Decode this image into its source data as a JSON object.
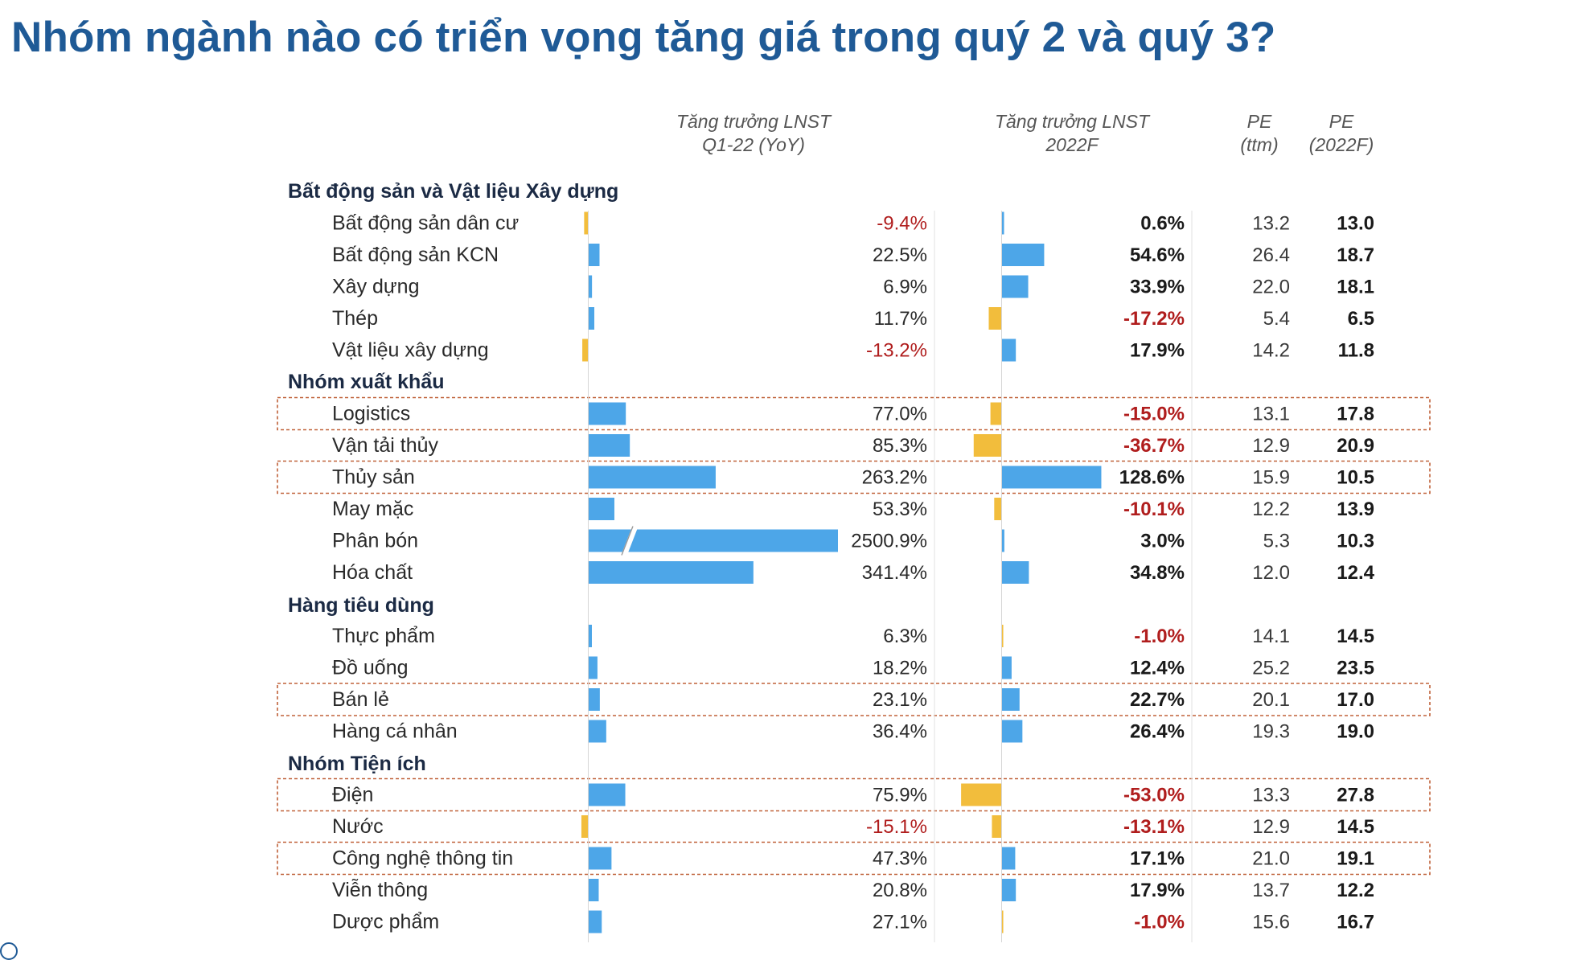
{
  "title": "Nhóm ngành nào có triển vọng tăng giá trong quý 2 và quý 3?",
  "colors": {
    "positive_bar": "#4da6e8",
    "negative_bar": "#f2bd3c",
    "negative_text": "#b01d1d",
    "title": "#1f5a96",
    "highlight_border": "#c0623a"
  },
  "chart_data": {
    "type": "table",
    "columns": [
      {
        "key": "q1",
        "label": [
          "Tăng trưởng LNST",
          "Q1-22 (YoY)"
        ]
      },
      {
        "key": "fy",
        "label": [
          "Tăng trưởng LNST",
          "2022F"
        ]
      },
      {
        "key": "pe_ttm",
        "label": [
          "PE",
          "(ttm)"
        ]
      },
      {
        "key": "pe_f",
        "label": [
          "PE",
          "(2022F)"
        ]
      }
    ],
    "groups": [
      {
        "name": "Bất động sản và Vật liệu Xây dựng",
        "rows": [
          {
            "name": "Bất động sản dân cư",
            "q1": -9.4,
            "q1_text": "-9.4%",
            "fy": 0.6,
            "fy_text": "0.6%",
            "pe_ttm": "13.2",
            "pe_f": "13.0",
            "highlight": false
          },
          {
            "name": "Bất động sản KCN",
            "q1": 22.5,
            "q1_text": "22.5%",
            "fy": 54.6,
            "fy_text": "54.6%",
            "pe_ttm": "26.4",
            "pe_f": "18.7",
            "highlight": false
          },
          {
            "name": "Xây dựng",
            "q1": 6.9,
            "q1_text": "6.9%",
            "fy": 33.9,
            "fy_text": "33.9%",
            "pe_ttm": "22.0",
            "pe_f": "18.1",
            "highlight": false
          },
          {
            "name": "Thép",
            "q1": 11.7,
            "q1_text": "11.7%",
            "fy": -17.2,
            "fy_text": "-17.2%",
            "pe_ttm": "5.4",
            "pe_f": "6.5",
            "highlight": false
          },
          {
            "name": "Vật liệu xây dựng",
            "q1": -13.2,
            "q1_text": "-13.2%",
            "fy": 17.9,
            "fy_text": "17.9%",
            "pe_ttm": "14.2",
            "pe_f": "11.8",
            "highlight": false
          }
        ]
      },
      {
        "name": "Nhóm xuất khẩu",
        "rows": [
          {
            "name": "Logistics",
            "q1": 77.0,
            "q1_text": "77.0%",
            "fy": -15.0,
            "fy_text": "-15.0%",
            "pe_ttm": "13.1",
            "pe_f": "17.8",
            "highlight": true
          },
          {
            "name": "Vận tải thủy",
            "q1": 85.3,
            "q1_text": "85.3%",
            "fy": -36.7,
            "fy_text": "-36.7%",
            "pe_ttm": "12.9",
            "pe_f": "20.9",
            "highlight": false
          },
          {
            "name": "Thủy sản",
            "q1": 263.2,
            "q1_text": "263.2%",
            "fy": 128.6,
            "fy_text": "128.6%",
            "pe_ttm": "15.9",
            "pe_f": "10.5",
            "highlight": true
          },
          {
            "name": "May mặc",
            "q1": 53.3,
            "q1_text": "53.3%",
            "fy": -10.1,
            "fy_text": "-10.1%",
            "pe_ttm": "12.2",
            "pe_f": "13.9",
            "highlight": false
          },
          {
            "name": "Phân bón",
            "q1": 2500.9,
            "q1_text": "2500.9%",
            "fy": 3.0,
            "fy_text": "3.0%",
            "pe_ttm": "5.3",
            "pe_f": "10.3",
            "highlight": false,
            "q1_axis_break": true
          },
          {
            "name": "Hóa chất",
            "q1": 341.4,
            "q1_text": "341.4%",
            "fy": 34.8,
            "fy_text": "34.8%",
            "pe_ttm": "12.0",
            "pe_f": "12.4",
            "highlight": false
          }
        ]
      },
      {
        "name": "Hàng tiêu dùng",
        "rows": [
          {
            "name": "Thực phẩm",
            "q1": 6.3,
            "q1_text": "6.3%",
            "fy": -1.0,
            "fy_text": "-1.0%",
            "pe_ttm": "14.1",
            "pe_f": "14.5",
            "highlight": false
          },
          {
            "name": "Đồ uống",
            "q1": 18.2,
            "q1_text": "18.2%",
            "fy": 12.4,
            "fy_text": "12.4%",
            "pe_ttm": "25.2",
            "pe_f": "23.5",
            "highlight": false
          },
          {
            "name": "Bán lẻ",
            "q1": 23.1,
            "q1_text": "23.1%",
            "fy": 22.7,
            "fy_text": "22.7%",
            "pe_ttm": "20.1",
            "pe_f": "17.0",
            "highlight": true
          },
          {
            "name": "Hàng cá nhân",
            "q1": 36.4,
            "q1_text": "36.4%",
            "fy": 26.4,
            "fy_text": "26.4%",
            "pe_ttm": "19.3",
            "pe_f": "19.0",
            "highlight": false
          }
        ]
      },
      {
        "name": "Nhóm Tiện ích",
        "rows": [
          {
            "name": "Điện",
            "q1": 75.9,
            "q1_text": "75.9%",
            "fy": -53.0,
            "fy_text": "-53.0%",
            "pe_ttm": "13.3",
            "pe_f": "27.8",
            "highlight": true
          },
          {
            "name": "Nước",
            "q1": -15.1,
            "q1_text": "-15.1%",
            "fy": -13.1,
            "fy_text": "-13.1%",
            "pe_ttm": "12.9",
            "pe_f": "14.5",
            "highlight": false
          },
          {
            "name": "Công nghệ thông tin",
            "q1": 47.3,
            "q1_text": "47.3%",
            "fy": 17.1,
            "fy_text": "17.1%",
            "pe_ttm": "21.0",
            "pe_f": "19.1",
            "highlight": true
          },
          {
            "name": "Viễn thông",
            "q1": 20.8,
            "q1_text": "20.8%",
            "fy": 17.9,
            "fy_text": "17.9%",
            "pe_ttm": "13.7",
            "pe_f": "12.2",
            "highlight": false
          },
          {
            "name": "Dược phẩm",
            "q1": 27.1,
            "q1_text": "27.1%",
            "fy": -1.0,
            "fy_text": "-1.0%",
            "pe_ttm": "15.6",
            "pe_f": "16.7",
            "highlight": false
          }
        ]
      }
    ]
  }
}
